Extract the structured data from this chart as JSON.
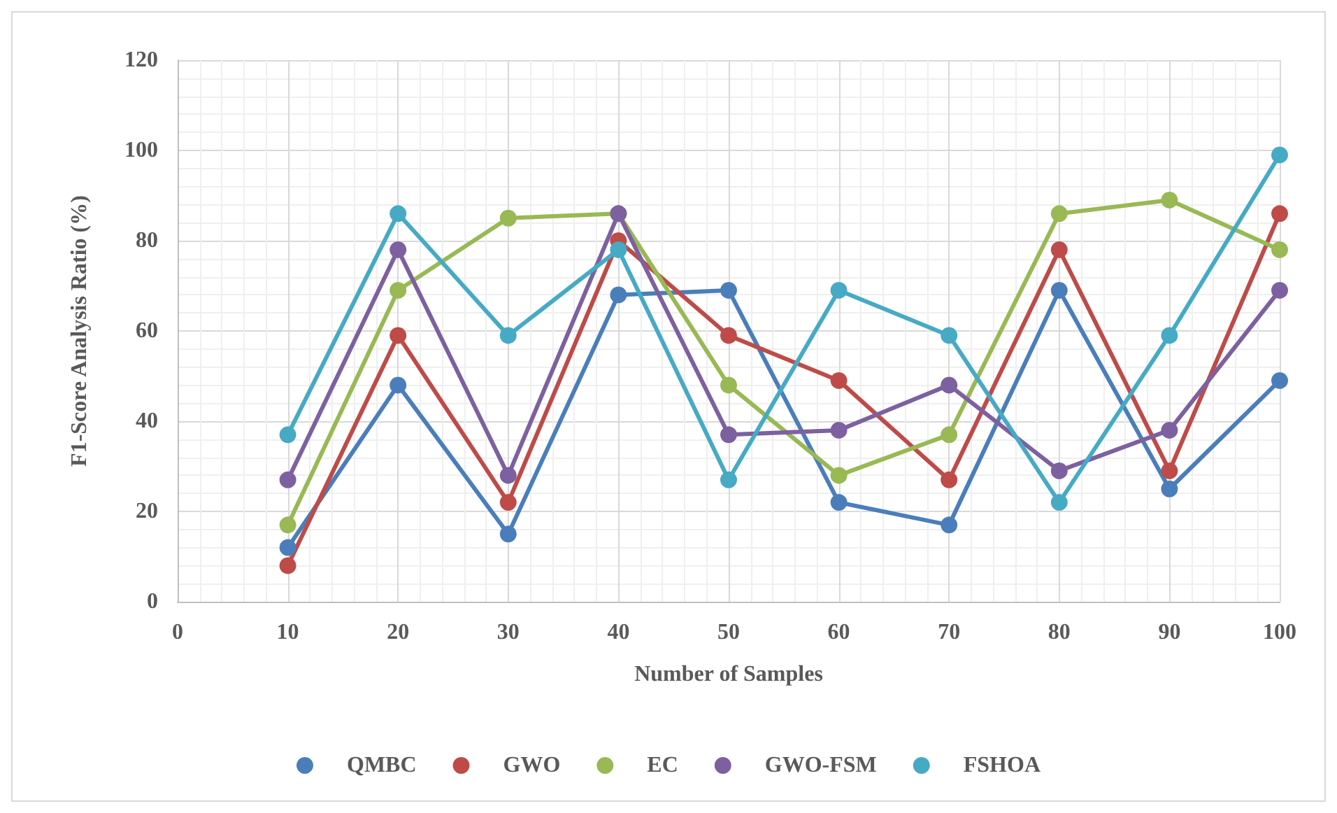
{
  "chart_data": {
    "type": "line",
    "xlabel": "Number of Samples",
    "ylabel": "F1-Score Analysis Ratio (%)",
    "x": [
      10,
      20,
      30,
      40,
      50,
      60,
      70,
      80,
      90,
      100
    ],
    "series": [
      {
        "name": "QMBC",
        "color": "#4a7ebb",
        "values": [
          12,
          48,
          15,
          68,
          69,
          22,
          17,
          69,
          25,
          49
        ]
      },
      {
        "name": "GWO",
        "color": "#be4b48",
        "values": [
          8,
          59,
          22,
          80,
          59,
          49,
          27,
          78,
          29,
          86
        ]
      },
      {
        "name": "EC",
        "color": "#98b954",
        "values": [
          17,
          69,
          85,
          86,
          48,
          28,
          37,
          86,
          89,
          78
        ]
      },
      {
        "name": "GWO-FSM",
        "color": "#7d60a0",
        "values": [
          27,
          78,
          28,
          86,
          37,
          38,
          48,
          29,
          38,
          69
        ]
      },
      {
        "name": "FSHOA",
        "color": "#46aac5",
        "values": [
          37,
          86,
          59,
          78,
          27,
          69,
          59,
          22,
          59,
          99
        ]
      }
    ],
    "xlim": [
      0,
      100
    ],
    "xticks": [
      0,
      10,
      20,
      30,
      40,
      50,
      60,
      70,
      80,
      90,
      100
    ],
    "ylim": [
      0,
      120
    ],
    "yticks": [
      0,
      20,
      40,
      60,
      80,
      100,
      120
    ],
    "grid": true,
    "legend": "bottom",
    "marker": "circle",
    "line_style": "solid"
  }
}
